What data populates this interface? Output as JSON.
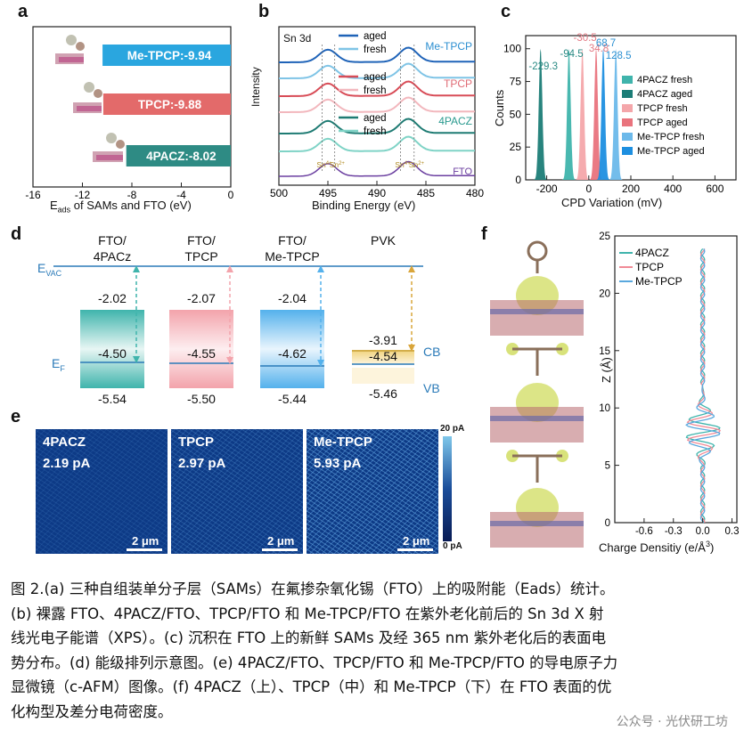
{
  "panels": {
    "a": {
      "label": "a",
      "xlabel": "E",
      "xlabel_sub": "ads",
      "xlabel_rest": " of SAMs and FTO (eV)",
      "ticks": [
        "-16",
        "-12",
        "-8",
        "-4",
        "0"
      ],
      "bars": [
        {
          "label": "Me-TPCP:-9.94",
          "color": "#2aa6df",
          "value": -9.94
        },
        {
          "label": "TPCP:-9.88",
          "color": "#e36a6a",
          "value": -9.88
        },
        {
          "label": "4PACZ:-8.02",
          "color": "#2e8b84",
          "value": -8.02
        }
      ]
    },
    "b": {
      "label": "b",
      "title": "Sn 3d",
      "ylabel": "Intensity",
      "xlabel": "Binding Energy (eV)",
      "ticks": [
        "500",
        "495",
        "490",
        "485",
        "480"
      ],
      "groups": [
        {
          "name": "Me-TPCP",
          "aged_color": "#1f63b8",
          "fresh_color": "#7fc4e6",
          "name_color": "#2c8fd1"
        },
        {
          "name": "TPCP",
          "aged_color": "#d84c57",
          "fresh_color": "#f2b7bd",
          "name_color": "#e06b75"
        },
        {
          "name": "4PACZ",
          "aged_color": "#1e7b73",
          "fresh_color": "#7fd3c6",
          "name_color": "#2a9a8f"
        }
      ],
      "legend_aged": "aged",
      "legend_fresh": "fresh",
      "fto_label": "FTO",
      "sn_labels": [
        "Sn",
        "Sn",
        "Sn",
        "Sn"
      ],
      "sn_sup": [
        "4+",
        "2+",
        "4+",
        "2+"
      ]
    },
    "c": {
      "label": "c",
      "ylabel": "Counts",
      "xlabel": "CPD Variation (mV)",
      "xticks": [
        "-200",
        "0",
        "200",
        "400",
        "600"
      ],
      "yticks": [
        "0",
        "25",
        "50",
        "75",
        "100"
      ],
      "annotations": [
        "-30.5",
        "-94.5",
        "34.8",
        "68.7",
        "-229.3",
        "128.5"
      ],
      "legend": [
        {
          "name": "4PACZ fresh",
          "color": "#3fb4ac"
        },
        {
          "name": "4PACZ aged",
          "color": "#1c7d77"
        },
        {
          "name": "TPCP fresh",
          "color": "#f4a6aa"
        },
        {
          "name": "TPCP aged",
          "color": "#e9737d"
        },
        {
          "name": "Me-TPCP fresh",
          "color": "#6cb9ea"
        },
        {
          "name": "Me-TPCP aged",
          "color": "#1d8fe0"
        }
      ]
    },
    "d": {
      "label": "d",
      "evac": "E",
      "evac_sub": "VAC",
      "ef": "E",
      "ef_sub": "F",
      "columns": [
        {
          "title1": "FTO/",
          "title2": "4PACz",
          "top": "-2.02",
          "mid": "-4.50",
          "bot": "-5.54"
        },
        {
          "title1": "FTO/",
          "title2": "TPCP",
          "top": "-2.07",
          "mid": "-4.55",
          "bot": "-5.50"
        },
        {
          "title1": "FTO/",
          "title2": "Me-TPCP",
          "top": "-2.04",
          "mid": "-4.62",
          "bot": "-5.44"
        },
        {
          "title1": "PVK",
          "title2": "",
          "top": "-3.91",
          "mid": "-4.54",
          "bot": "-5.46"
        }
      ],
      "cb": "CB",
      "vb": "VB"
    },
    "e": {
      "label": "e",
      "tiles": [
        {
          "name": "4PACZ",
          "value": "2.19 pA"
        },
        {
          "name": "TPCP",
          "value": "2.97 pA"
        },
        {
          "name": "Me-TPCP",
          "value": "5.93 pA"
        }
      ],
      "scale": "2 μm",
      "cbar_top": "20 pA",
      "cbar_bot": "0 pA"
    },
    "f": {
      "label": "f",
      "ylabel": "Z (Å)",
      "xlabel": "Charge Densitiy (e/Å",
      "xlabel_sup": "3",
      "xlabel_end": ")",
      "xticks": [
        "-0.6",
        "-0.3",
        "0.0",
        "0.3"
      ],
      "yticks": [
        "0",
        "5",
        "10",
        "15",
        "20",
        "25"
      ],
      "legend": [
        {
          "name": "4PACZ",
          "color": "#3fb4ac"
        },
        {
          "name": "TPCP",
          "color": "#f08a96"
        },
        {
          "name": "Me-TPCP",
          "color": "#5aa8de"
        }
      ]
    }
  },
  "caption": {
    "line1": "图 2.(a) 三种自组装单分子层（SAMs）在氟掺杂氧化锡（FTO）上的吸附能（Eads）统计。",
    "line2": "(b) 裸露 FTO、4PACZ/FTO、TPCP/FTO 和 Me-TPCP/FTO 在紫外老化前后的 Sn 3d X 射",
    "line3": "线光电子能谱（XPS）。(c) 沉积在 FTO 上的新鲜 SAMs 及经 365 nm 紫外老化后的表面电",
    "line4": "势分布。(d) 能级排列示意图。(e) 4PACZ/FTO、TPCP/FTO 和 Me-TPCP/FTO 的导电原子力",
    "line5": "显微镜（c-AFM）图像。(f) 4PACZ（上）、TPCP（中）和 Me-TPCP（下）在 FTO 表面的优",
    "line6": "化构型及差分电荷密度。"
  },
  "watermark": "公众号 · 光伏研工坊"
}
